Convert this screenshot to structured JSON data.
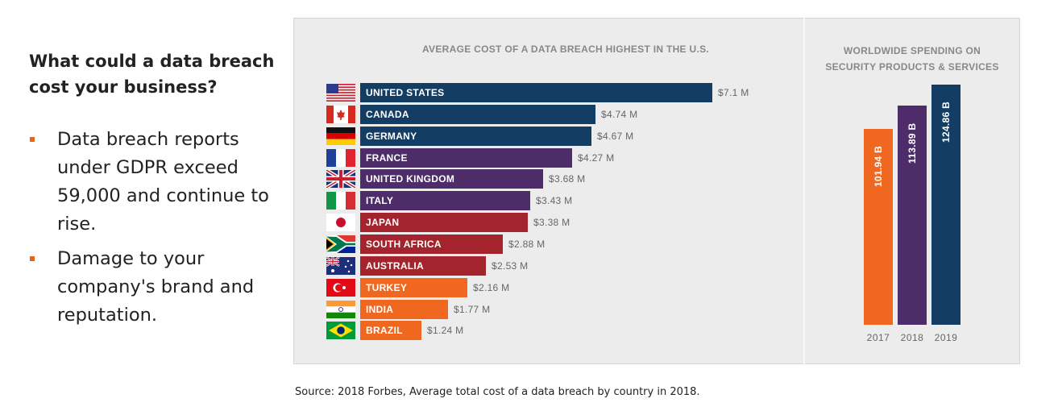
{
  "heading": "What could a data breach cost your business?",
  "bullets": [
    "Data breach reports under GDPR exceed 59,000 and continue to rise.",
    "Damage to your company's brand and reputation."
  ],
  "source": "Source: 2018 Forbes, Average total cost of a data breach by country in 2018.",
  "colors": {
    "navy": "#143d63",
    "purple": "#4e2c6a",
    "red": "#a4242d",
    "orange": "#f0681f",
    "bullet": "#e8651c"
  },
  "chart_data": [
    {
      "type": "bar",
      "orientation": "horizontal",
      "title": "AVERAGE COST OF A DATA BREACH HIGHEST IN THE U.S.",
      "unit": "M USD",
      "categories": [
        "UNITED STATES",
        "CANADA",
        "GERMANY",
        "FRANCE",
        "UNITED KINGDOM",
        "ITALY",
        "JAPAN",
        "SOUTH AFRICA",
        "AUSTRALIA",
        "TURKEY",
        "INDIA",
        "BRAZIL"
      ],
      "values": [
        7.1,
        4.74,
        4.67,
        4.27,
        3.68,
        3.43,
        3.38,
        2.88,
        2.53,
        2.16,
        1.77,
        1.24
      ],
      "value_labels": [
        "$7.1 M",
        "$4.74 M",
        "$4.67 M",
        "$4.27 M",
        "$3.68 M",
        "$3.43 M",
        "$3.38 M",
        "$2.88 M",
        "$2.53 M",
        "$2.16 M",
        "$1.77 M",
        "$1.24 M"
      ],
      "bar_colors": [
        "navy",
        "navy",
        "navy",
        "purple",
        "purple",
        "purple",
        "red",
        "red",
        "red",
        "orange",
        "orange",
        "orange"
      ],
      "flags": [
        "us-flag-icon",
        "canada-flag-icon",
        "germany-flag-icon",
        "france-flag-icon",
        "uk-flag-icon",
        "italy-flag-icon",
        "japan-flag-icon",
        "south-africa-flag-icon",
        "australia-flag-icon",
        "turkey-flag-icon",
        "india-flag-icon",
        "brazil-flag-icon"
      ],
      "xlim": [
        0,
        7.1
      ]
    },
    {
      "type": "bar",
      "orientation": "vertical",
      "title": "WORLDWIDE SPENDING ON SECURITY PRODUCTS & SERVICES",
      "title_lines": [
        "WORLDWIDE SPENDING ON",
        "SECURITY PRODUCTS & SERVICES"
      ],
      "unit": "B USD",
      "categories": [
        "2017",
        "2018",
        "2019"
      ],
      "values": [
        101.94,
        113.89,
        124.86
      ],
      "value_labels": [
        "101.94 B",
        "113.89 B",
        "124.86 B"
      ],
      "bar_colors": [
        "orange",
        "purple",
        "navy"
      ],
      "ylim": [
        0,
        124.86
      ]
    }
  ]
}
